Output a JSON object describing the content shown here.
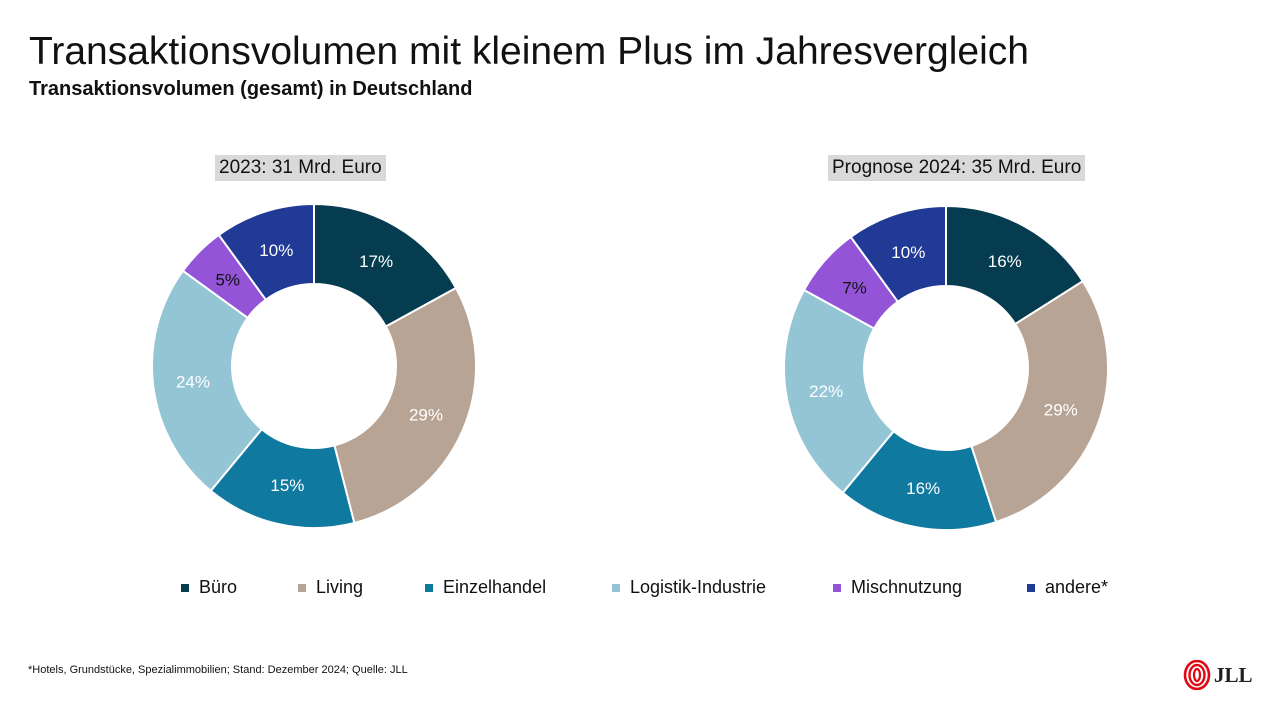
{
  "header": {
    "title": "Transaktionsvolumen mit kleinem Plus im Jahresvergleich",
    "subtitle": "Transaktionsvolumen (gesamt) in Deutschland"
  },
  "colors": {
    "Büro": "#063c50",
    "Living": "#b8a495",
    "Einzelhandel": "#1079a0",
    "Logistik-Industrie": "#94c5d4",
    "Mischnutzung": "#9354d8",
    "andere*": "#213a95"
  },
  "chart_data": [
    {
      "type": "pie",
      "title": "2023: 31 Mrd. Euro",
      "categories": [
        "Büro",
        "Living",
        "Einzelhandel",
        "Logistik-Industrie",
        "Mischnutzung",
        "andere*"
      ],
      "values": [
        17,
        29,
        15,
        24,
        5,
        10
      ],
      "labels": [
        "17%",
        "29%",
        "15%",
        "24%",
        "5%",
        "10%"
      ]
    },
    {
      "type": "pie",
      "title": "Prognose 2024: 35 Mrd. Euro",
      "categories": [
        "Büro",
        "Living",
        "Einzelhandel",
        "Logistik-Industrie",
        "Mischnutzung",
        "andere*"
      ],
      "values": [
        16,
        29,
        16,
        22,
        7,
        10
      ],
      "labels": [
        "16%",
        "29%",
        "16%",
        "22%",
        "7%",
        "10%"
      ]
    }
  ],
  "legend": [
    "Büro",
    "Living",
    "Einzelhandel",
    "Logistik-Industrie",
    "Mischnutzung",
    "andere*"
  ],
  "footnote": "*Hotels, Grundstücke, Spezialimmobilien; Stand: Dezember 2024; Quelle: JLL",
  "logo": {
    "text": "JLL"
  }
}
